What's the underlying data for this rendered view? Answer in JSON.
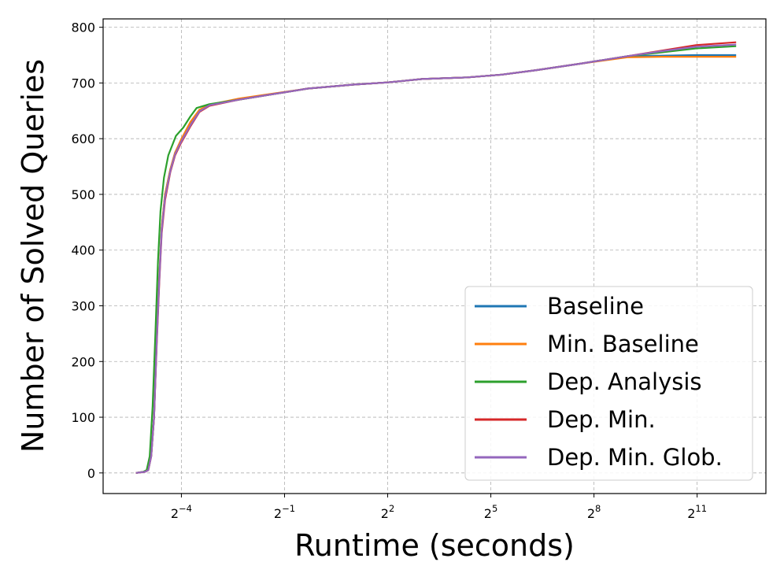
{
  "chart_data": {
    "type": "line",
    "title": "",
    "xlabel": "Runtime (seconds)",
    "ylabel": "Number of Solved Queries",
    "x_scale": "log2",
    "xlim": [
      0.0129,
      8192
    ],
    "ylim": [
      -37,
      815
    ],
    "x_ticks": [
      {
        "value": 0.0625,
        "base": "2",
        "exp": "−4"
      },
      {
        "value": 0.5,
        "base": "2",
        "exp": "−1"
      },
      {
        "value": 4,
        "base": "2",
        "exp": "2"
      },
      {
        "value": 32,
        "base": "2",
        "exp": "5"
      },
      {
        "value": 256,
        "base": "2",
        "exp": "8"
      },
      {
        "value": 2048,
        "base": "2",
        "exp": "11"
      }
    ],
    "y_ticks": [
      0,
      100,
      200,
      300,
      400,
      500,
      600,
      700,
      800
    ],
    "grid": true,
    "legend_position": "lower-right",
    "series": [
      {
        "name": "Baseline",
        "color": "#1f77b4",
        "points": [
          [
            0.025,
            0
          ],
          [
            0.03,
            2
          ],
          [
            0.032,
            5
          ],
          [
            0.034,
            30
          ],
          [
            0.036,
            100
          ],
          [
            0.038,
            240
          ],
          [
            0.04,
            350
          ],
          [
            0.042,
            440
          ],
          [
            0.045,
            500
          ],
          [
            0.05,
            545
          ],
          [
            0.055,
            575
          ],
          [
            0.062,
            595
          ],
          [
            0.075,
            625
          ],
          [
            0.09,
            650
          ],
          [
            0.11,
            660
          ],
          [
            0.2,
            670
          ],
          [
            0.4,
            680
          ],
          [
            0.8,
            690
          ],
          [
            2,
            697
          ],
          [
            4,
            701
          ],
          [
            8,
            707
          ],
          [
            20,
            710
          ],
          [
            40,
            715
          ],
          [
            80,
            723
          ],
          [
            200,
            735
          ],
          [
            500,
            748
          ],
          [
            1000,
            749
          ],
          [
            2000,
            750
          ],
          [
            4500,
            750
          ]
        ]
      },
      {
        "name": "Min. Baseline",
        "color": "#ff7f0e",
        "points": [
          [
            0.025,
            0
          ],
          [
            0.03,
            2
          ],
          [
            0.032,
            5
          ],
          [
            0.034,
            30
          ],
          [
            0.036,
            100
          ],
          [
            0.038,
            240
          ],
          [
            0.04,
            350
          ],
          [
            0.042,
            440
          ],
          [
            0.045,
            500
          ],
          [
            0.05,
            545
          ],
          [
            0.055,
            575
          ],
          [
            0.062,
            598
          ],
          [
            0.075,
            630
          ],
          [
            0.09,
            652
          ],
          [
            0.11,
            661
          ],
          [
            0.2,
            672
          ],
          [
            0.4,
            681
          ],
          [
            0.8,
            690
          ],
          [
            2,
            697
          ],
          [
            4,
            701
          ],
          [
            8,
            707
          ],
          [
            20,
            710
          ],
          [
            40,
            715
          ],
          [
            80,
            723
          ],
          [
            200,
            735
          ],
          [
            500,
            746
          ],
          [
            1000,
            747
          ],
          [
            2000,
            747
          ],
          [
            4500,
            747
          ]
        ]
      },
      {
        "name": "Dep. Analysis",
        "color": "#2ca02c",
        "points": [
          [
            0.025,
            0
          ],
          [
            0.029,
            2
          ],
          [
            0.031,
            5
          ],
          [
            0.033,
            30
          ],
          [
            0.035,
            120
          ],
          [
            0.037,
            250
          ],
          [
            0.039,
            380
          ],
          [
            0.041,
            470
          ],
          [
            0.044,
            530
          ],
          [
            0.048,
            570
          ],
          [
            0.056,
            605
          ],
          [
            0.065,
            620
          ],
          [
            0.075,
            640
          ],
          [
            0.085,
            655
          ],
          [
            0.11,
            662
          ],
          [
            0.2,
            670
          ],
          [
            0.4,
            680
          ],
          [
            0.8,
            690
          ],
          [
            2,
            697
          ],
          [
            4,
            701
          ],
          [
            8,
            707
          ],
          [
            20,
            710
          ],
          [
            40,
            715
          ],
          [
            80,
            723
          ],
          [
            200,
            735
          ],
          [
            500,
            748
          ],
          [
            1000,
            755
          ],
          [
            2000,
            762
          ],
          [
            4500,
            766
          ]
        ]
      },
      {
        "name": "Dep. Min.",
        "color": "#d62728",
        "points": [
          [
            0.025,
            0
          ],
          [
            0.03,
            2
          ],
          [
            0.032,
            5
          ],
          [
            0.034,
            30
          ],
          [
            0.036,
            100
          ],
          [
            0.038,
            230
          ],
          [
            0.04,
            340
          ],
          [
            0.042,
            430
          ],
          [
            0.045,
            490
          ],
          [
            0.05,
            540
          ],
          [
            0.055,
            570
          ],
          [
            0.062,
            592
          ],
          [
            0.075,
            622
          ],
          [
            0.09,
            648
          ],
          [
            0.11,
            659
          ],
          [
            0.2,
            670
          ],
          [
            0.4,
            680
          ],
          [
            0.8,
            690
          ],
          [
            2,
            697
          ],
          [
            4,
            701
          ],
          [
            8,
            707
          ],
          [
            20,
            710
          ],
          [
            40,
            715
          ],
          [
            80,
            723
          ],
          [
            200,
            735
          ],
          [
            500,
            748
          ],
          [
            1000,
            758
          ],
          [
            2000,
            768
          ],
          [
            4500,
            773
          ]
        ]
      },
      {
        "name": "Dep. Min. Glob.",
        "color": "#9467bd",
        "points": [
          [
            0.025,
            0
          ],
          [
            0.03,
            2
          ],
          [
            0.032,
            5
          ],
          [
            0.034,
            30
          ],
          [
            0.036,
            100
          ],
          [
            0.038,
            235
          ],
          [
            0.04,
            345
          ],
          [
            0.042,
            435
          ],
          [
            0.045,
            495
          ],
          [
            0.05,
            542
          ],
          [
            0.055,
            572
          ],
          [
            0.062,
            594
          ],
          [
            0.075,
            624
          ],
          [
            0.09,
            649
          ],
          [
            0.11,
            660
          ],
          [
            0.2,
            670
          ],
          [
            0.4,
            680
          ],
          [
            0.8,
            690
          ],
          [
            2,
            697
          ],
          [
            4,
            701
          ],
          [
            8,
            707
          ],
          [
            20,
            710
          ],
          [
            40,
            715
          ],
          [
            80,
            723
          ],
          [
            200,
            735
          ],
          [
            500,
            748
          ],
          [
            1000,
            757
          ],
          [
            2000,
            765
          ],
          [
            4500,
            769
          ]
        ]
      }
    ]
  }
}
